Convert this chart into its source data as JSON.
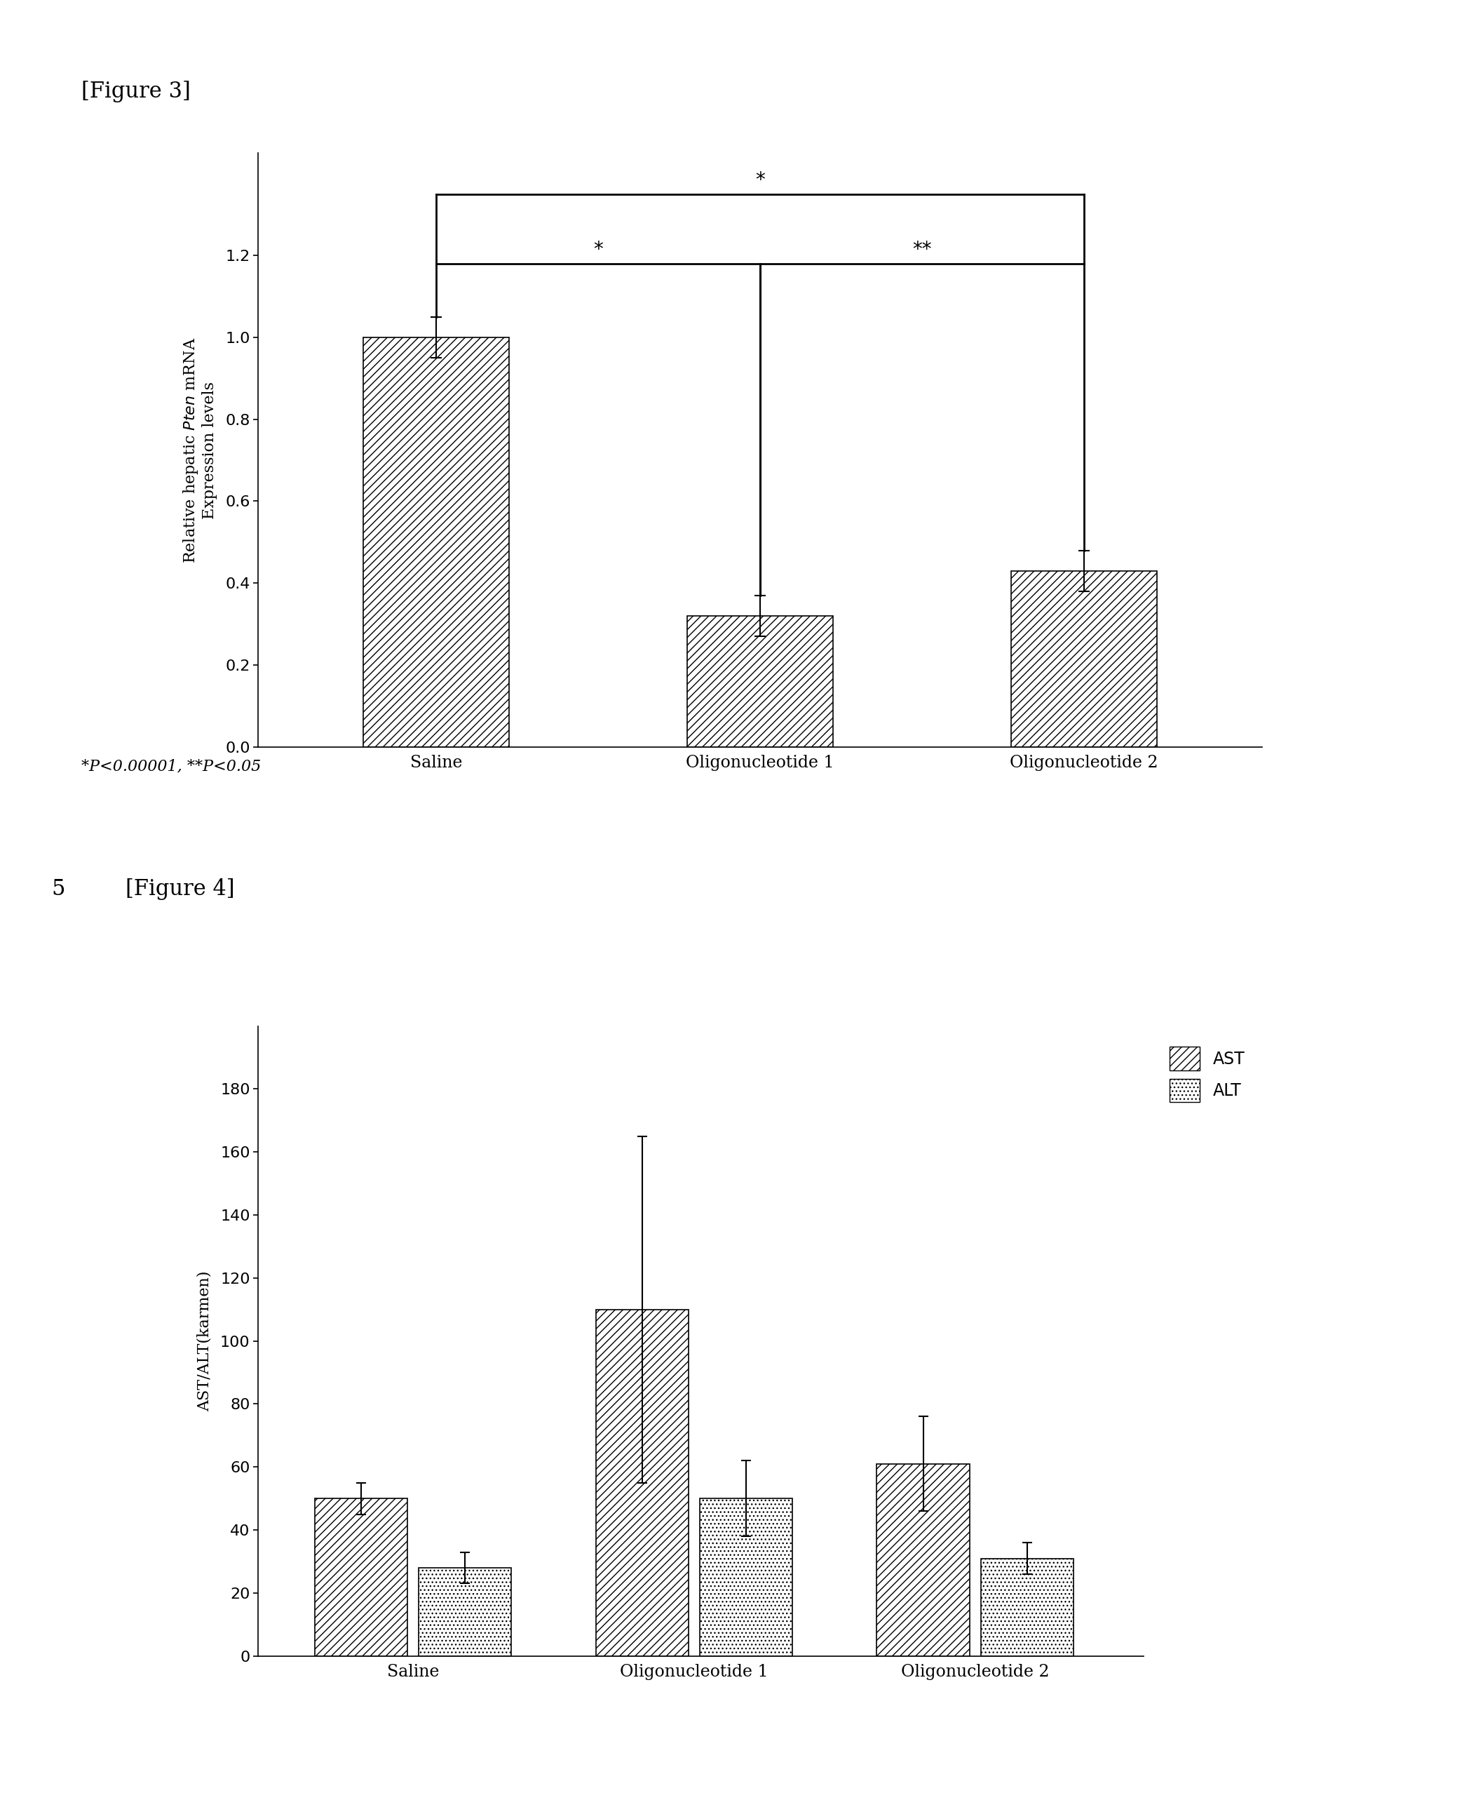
{
  "fig3_label": "[Figure 3]",
  "fig4_label": "[Figure 4]",
  "fig4_number": "5",
  "fig3_categories": [
    "Saline",
    "Oligonucleotide 1",
    "Oligonucleotide 2"
  ],
  "fig3_values": [
    1.0,
    0.32,
    0.43
  ],
  "fig3_errors": [
    0.05,
    0.05,
    0.05
  ],
  "fig3_ylabel": "Relative hepatic $\\it{Pten}$ mRNA\nExpression levels",
  "fig3_ylim": [
    0,
    1.45
  ],
  "fig3_yticks": [
    0,
    0.2,
    0.4,
    0.6,
    0.8,
    1.0,
    1.2
  ],
  "fig3_note": "*P<0.00001, **P<0.05",
  "fig4_categories": [
    "Saline",
    "Oligonucleotide 1",
    "Oligonucleotide 2"
  ],
  "fig4_ast_values": [
    50,
    110,
    61
  ],
  "fig4_alt_values": [
    28,
    50,
    31
  ],
  "fig4_ast_errors": [
    5,
    55,
    15
  ],
  "fig4_alt_errors": [
    5,
    12,
    5
  ],
  "fig4_ylabel": "AST/ALT(karmen)",
  "fig4_ylim": [
    0,
    200
  ],
  "fig4_yticks": [
    0,
    20,
    40,
    60,
    80,
    100,
    120,
    140,
    160,
    180
  ],
  "hatch_diagonal": "///",
  "hatch_dotted": "...",
  "background_color": "#ffffff",
  "text_color": "#000000"
}
